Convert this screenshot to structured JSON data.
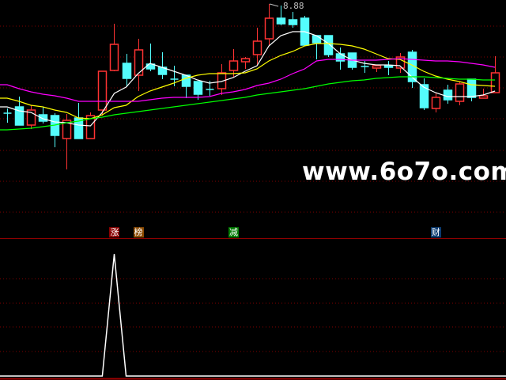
{
  "chart_data": [
    {
      "type": "candlestick",
      "price_range": [
        6.25,
        8.93
      ],
      "grid": true,
      "high_label": "8.88",
      "candles": [
        {
          "o": 7.5,
          "h": 7.56,
          "l": 7.38,
          "c": 7.5
        },
        {
          "o": 7.58,
          "h": 7.71,
          "l": 7.35,
          "c": 7.35
        },
        {
          "o": 7.35,
          "h": 7.6,
          "l": 7.3,
          "c": 7.54
        },
        {
          "o": 7.48,
          "h": 7.58,
          "l": 7.37,
          "c": 7.4
        },
        {
          "o": 7.47,
          "h": 7.5,
          "l": 7.07,
          "c": 7.22
        },
        {
          "o": 7.18,
          "h": 7.49,
          "l": 6.79,
          "c": 7.41
        },
        {
          "o": 7.44,
          "h": 7.63,
          "l": 7.18,
          "c": 7.18
        },
        {
          "o": 7.18,
          "h": 7.51,
          "l": 7.18,
          "c": 7.47
        },
        {
          "o": 7.54,
          "h": 8.03,
          "l": 7.47,
          "c": 8.03
        },
        {
          "o": 8.04,
          "h": 8.63,
          "l": 8.03,
          "c": 8.37
        },
        {
          "o": 8.13,
          "h": 8.25,
          "l": 7.83,
          "c": 7.94
        },
        {
          "o": 7.98,
          "h": 8.44,
          "l": 7.78,
          "c": 8.3
        },
        {
          "o": 8.12,
          "h": 8.38,
          "l": 8.03,
          "c": 8.06
        },
        {
          "o": 8.08,
          "h": 8.27,
          "l": 7.93,
          "c": 7.99
        },
        {
          "o": 7.93,
          "h": 8.1,
          "l": 7.84,
          "c": 7.93
        },
        {
          "o": 7.98,
          "h": 7.98,
          "l": 7.69,
          "c": 7.84
        },
        {
          "o": 7.9,
          "h": 7.9,
          "l": 7.67,
          "c": 7.74
        },
        {
          "o": 7.8,
          "h": 7.91,
          "l": 7.72,
          "c": 7.8
        },
        {
          "o": 7.81,
          "h": 8.12,
          "l": 7.73,
          "c": 8.01
        },
        {
          "o": 8.04,
          "h": 8.31,
          "l": 7.96,
          "c": 8.16
        },
        {
          "o": 8.15,
          "h": 8.21,
          "l": 8.06,
          "c": 8.19
        },
        {
          "o": 8.24,
          "h": 8.58,
          "l": 8.11,
          "c": 8.41
        },
        {
          "o": 8.44,
          "h": 8.88,
          "l": 8.36,
          "c": 8.7
        },
        {
          "o": 8.7,
          "h": 8.86,
          "l": 8.61,
          "c": 8.63
        },
        {
          "o": 8.68,
          "h": 8.78,
          "l": 8.58,
          "c": 8.62
        },
        {
          "o": 8.7,
          "h": 8.73,
          "l": 8.35,
          "c": 8.36
        },
        {
          "o": 8.48,
          "h": 8.48,
          "l": 8.18,
          "c": 8.39
        },
        {
          "o": 8.48,
          "h": 8.48,
          "l": 8.21,
          "c": 8.24
        },
        {
          "o": 8.25,
          "h": 8.33,
          "l": 8.05,
          "c": 8.16
        },
        {
          "o": 8.26,
          "h": 8.26,
          "l": 8.05,
          "c": 8.08
        },
        {
          "o": 8.09,
          "h": 8.16,
          "l": 8.01,
          "c": 8.09
        },
        {
          "o": 8.07,
          "h": 8.1,
          "l": 8.02,
          "c": 8.1
        },
        {
          "o": 8.1,
          "h": 8.16,
          "l": 7.98,
          "c": 8.08
        },
        {
          "o": 8.07,
          "h": 8.26,
          "l": 8.01,
          "c": 8.21
        },
        {
          "o": 8.27,
          "h": 8.3,
          "l": 7.82,
          "c": 7.9
        },
        {
          "o": 7.86,
          "h": 7.94,
          "l": 7.54,
          "c": 7.57
        },
        {
          "o": 7.56,
          "h": 7.75,
          "l": 7.51,
          "c": 7.7
        },
        {
          "o": 7.79,
          "h": 7.86,
          "l": 7.62,
          "c": 7.67
        },
        {
          "o": 7.65,
          "h": 7.9,
          "l": 7.6,
          "c": 7.87
        },
        {
          "o": 7.93,
          "h": 7.93,
          "l": 7.65,
          "c": 7.7
        },
        {
          "o": 7.69,
          "h": 7.81,
          "l": 7.69,
          "c": 7.72
        },
        {
          "o": 7.76,
          "h": 8.22,
          "l": 7.76,
          "c": 8.01
        }
      ],
      "moving_averages": [
        {
          "color": "#ffffff",
          "values": [
            7.58,
            7.53,
            7.51,
            7.43,
            7.39,
            7.38,
            7.35,
            7.34,
            7.51,
            7.75,
            7.83,
            8.0,
            8.13,
            8.08,
            8.03,
            7.98,
            7.92,
            7.88,
            7.9,
            7.95,
            8.03,
            8.1,
            8.35,
            8.48,
            8.53,
            8.53,
            8.48,
            8.38,
            8.25,
            8.17,
            8.13,
            8.11,
            8.11,
            8.1,
            7.96,
            7.83,
            7.76,
            7.71,
            7.71,
            7.71,
            7.73,
            7.78
          ]
        },
        {
          "color": "#ffff00",
          "values": [
            7.69,
            7.65,
            7.6,
            7.58,
            7.54,
            7.51,
            7.44,
            7.43,
            7.48,
            7.57,
            7.6,
            7.71,
            7.78,
            7.83,
            7.88,
            7.94,
            7.98,
            8.0,
            8.0,
            8.0,
            8.01,
            8.06,
            8.16,
            8.23,
            8.28,
            8.35,
            8.38,
            8.38,
            8.37,
            8.35,
            8.31,
            8.25,
            8.19,
            8.18,
            8.11,
            8.03,
            7.97,
            7.93,
            7.9,
            7.86,
            7.85,
            7.84
          ]
        },
        {
          "color": "#ff00ff",
          "values": [
            7.86,
            7.81,
            7.77,
            7.74,
            7.72,
            7.69,
            7.65,
            7.65,
            7.65,
            7.65,
            7.65,
            7.65,
            7.67,
            7.69,
            7.7,
            7.7,
            7.7,
            7.71,
            7.75,
            7.77,
            7.8,
            7.85,
            7.88,
            7.93,
            8.0,
            8.06,
            8.16,
            8.18,
            8.18,
            8.17,
            8.17,
            8.17,
            8.18,
            8.19,
            8.18,
            8.17,
            8.16,
            8.16,
            8.15,
            8.13,
            8.11,
            8.08
          ]
        },
        {
          "color": "#00ff00",
          "values": [
            7.29,
            7.3,
            7.31,
            7.33,
            7.35,
            7.38,
            7.4,
            7.43,
            7.45,
            7.48,
            7.5,
            7.52,
            7.54,
            7.56,
            7.58,
            7.6,
            7.62,
            7.64,
            7.66,
            7.68,
            7.7,
            7.73,
            7.75,
            7.77,
            7.79,
            7.81,
            7.84,
            7.87,
            7.89,
            7.91,
            7.92,
            7.94,
            7.95,
            7.96,
            7.96,
            7.96,
            7.95,
            7.94,
            7.93,
            7.93,
            7.92,
            7.92
          ]
        }
      ],
      "colors": {
        "up": "#ff3333",
        "down": "#54fcfc",
        "grid": "#800000",
        "divider": "#a00000"
      }
    },
    {
      "type": "line",
      "ylim": [
        0,
        1
      ],
      "grid": true,
      "values": [
        0,
        0,
        0,
        0,
        0,
        0,
        0,
        0,
        0,
        1,
        0,
        0,
        0,
        0,
        0,
        0,
        0,
        0,
        0,
        0,
        0,
        0,
        0,
        0,
        0,
        0,
        0,
        0,
        0,
        0,
        0,
        0,
        0,
        0,
        0,
        0,
        0,
        0,
        0,
        0,
        0,
        0
      ],
      "color": "#ffffff",
      "markers": [
        {
          "index": 8,
          "text": "涨",
          "bg": "#8b0000"
        },
        {
          "index": 10,
          "text": "榜",
          "bg": "#8b4a00"
        },
        {
          "index": 18,
          "text": "减",
          "bg": "#007a00"
        },
        {
          "index": 35,
          "text": "财",
          "bg": "#0a3a70"
        }
      ]
    }
  ],
  "watermark": "www.6o7o.com"
}
